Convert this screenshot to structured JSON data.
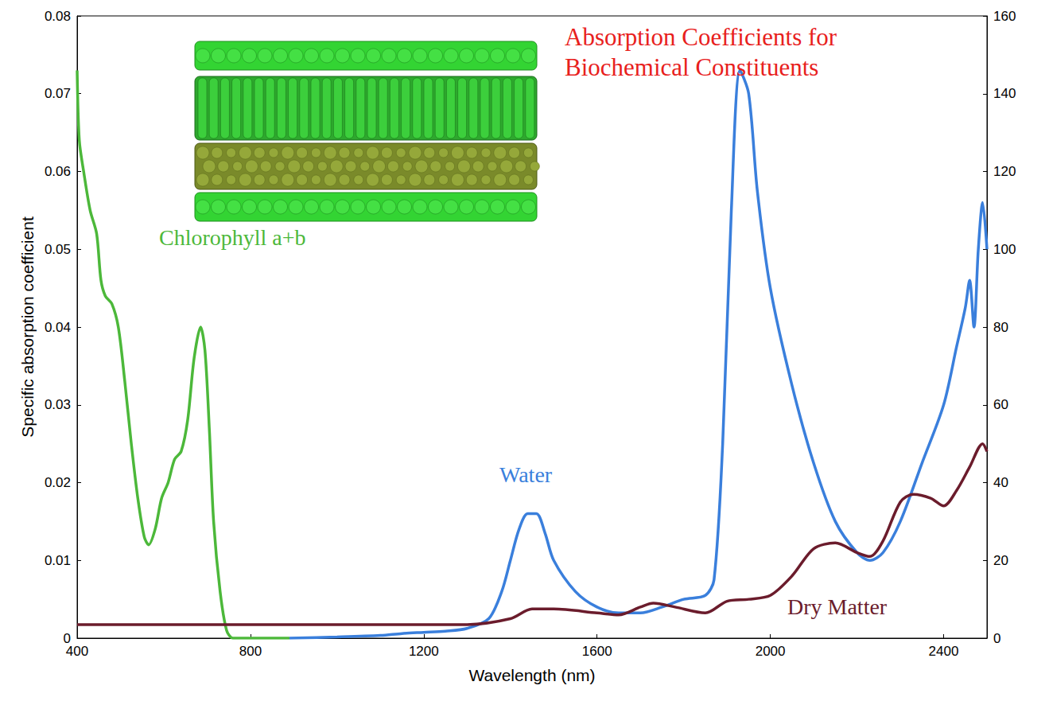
{
  "chart_data": {
    "type": "line",
    "title": "Absorption Coefficients for Biochemical Constituents",
    "x_label": "Wavelength (nm)",
    "y_label": "Specific absorption coefficient",
    "xlim": [
      400,
      2500
    ],
    "xticks": [
      400,
      800,
      1200,
      1600,
      2000,
      2400
    ],
    "ylim": [
      0,
      0.08
    ],
    "yticks": [
      0,
      0.01,
      0.02,
      0.03,
      0.04,
      0.05,
      0.06,
      0.07,
      0.08
    ],
    "y2lim": [
      0,
      160
    ],
    "y2ticks": [
      0,
      20,
      40,
      60,
      80,
      100,
      120,
      140,
      160
    ],
    "grid": false,
    "series": [
      {
        "name": "Chlorophyll a+b",
        "color": "#4cb83a",
        "x": [
          400,
          405,
          415,
          430,
          445,
          455,
          465,
          480,
          495,
          510,
          525,
          540,
          555,
          565,
          580,
          595,
          610,
          625,
          640,
          655,
          670,
          685,
          695,
          705,
          715,
          730,
          745,
          760,
          800,
          890
        ],
        "values": [
          0.073,
          0.064,
          0.06,
          0.055,
          0.052,
          0.046,
          0.044,
          0.043,
          0.04,
          0.033,
          0.025,
          0.018,
          0.013,
          0.012,
          0.014,
          0.018,
          0.02,
          0.023,
          0.024,
          0.028,
          0.036,
          0.04,
          0.037,
          0.027,
          0.015,
          0.006,
          0.001,
          0,
          0,
          0
        ]
      },
      {
        "name": "Water",
        "color": "#3a7fdc",
        "axis": "y2",
        "x": [
          890,
          1000,
          1100,
          1150,
          1200,
          1250,
          1300,
          1350,
          1380,
          1400,
          1420,
          1440,
          1460,
          1480,
          1500,
          1550,
          1600,
          1650,
          1700,
          1750,
          1800,
          1850,
          1870,
          1890,
          1910,
          1930,
          1950,
          1970,
          2000,
          2050,
          2100,
          2150,
          2200,
          2230,
          2260,
          2300,
          2350,
          2400,
          2430,
          2450,
          2460,
          2470,
          2480,
          2490,
          2500
        ],
        "values": [
          0,
          0.3,
          0.7,
          1.2,
          1.5,
          1.8,
          2.5,
          5,
          12,
          20,
          28,
          32,
          32,
          27,
          20,
          12,
          8,
          6.5,
          6.5,
          8,
          10,
          11,
          15,
          50,
          110,
          146,
          140,
          115,
          90,
          65,
          45,
          30,
          22,
          20,
          22,
          30,
          45,
          60,
          75,
          85,
          92,
          80,
          100,
          112,
          100
        ]
      },
      {
        "name": "Dry Matter",
        "color": "#6b1c2c",
        "axis": "y2",
        "x": [
          400,
          800,
          1200,
          1300,
          1400,
          1450,
          1500,
          1600,
          1650,
          1700,
          1730,
          1780,
          1850,
          1900,
          1950,
          2000,
          2050,
          2100,
          2150,
          2200,
          2230,
          2260,
          2300,
          2330,
          2370,
          2400,
          2430,
          2460,
          2490,
          2500
        ],
        "values": [
          3.5,
          3.5,
          3.5,
          3.5,
          5,
          7.5,
          7.5,
          6.5,
          6,
          8,
          9,
          8,
          6.5,
          9.5,
          10,
          11,
          16,
          23,
          24.5,
          22,
          21,
          25,
          35,
          37,
          36,
          34,
          38,
          44,
          50,
          48
        ]
      }
    ]
  }
}
